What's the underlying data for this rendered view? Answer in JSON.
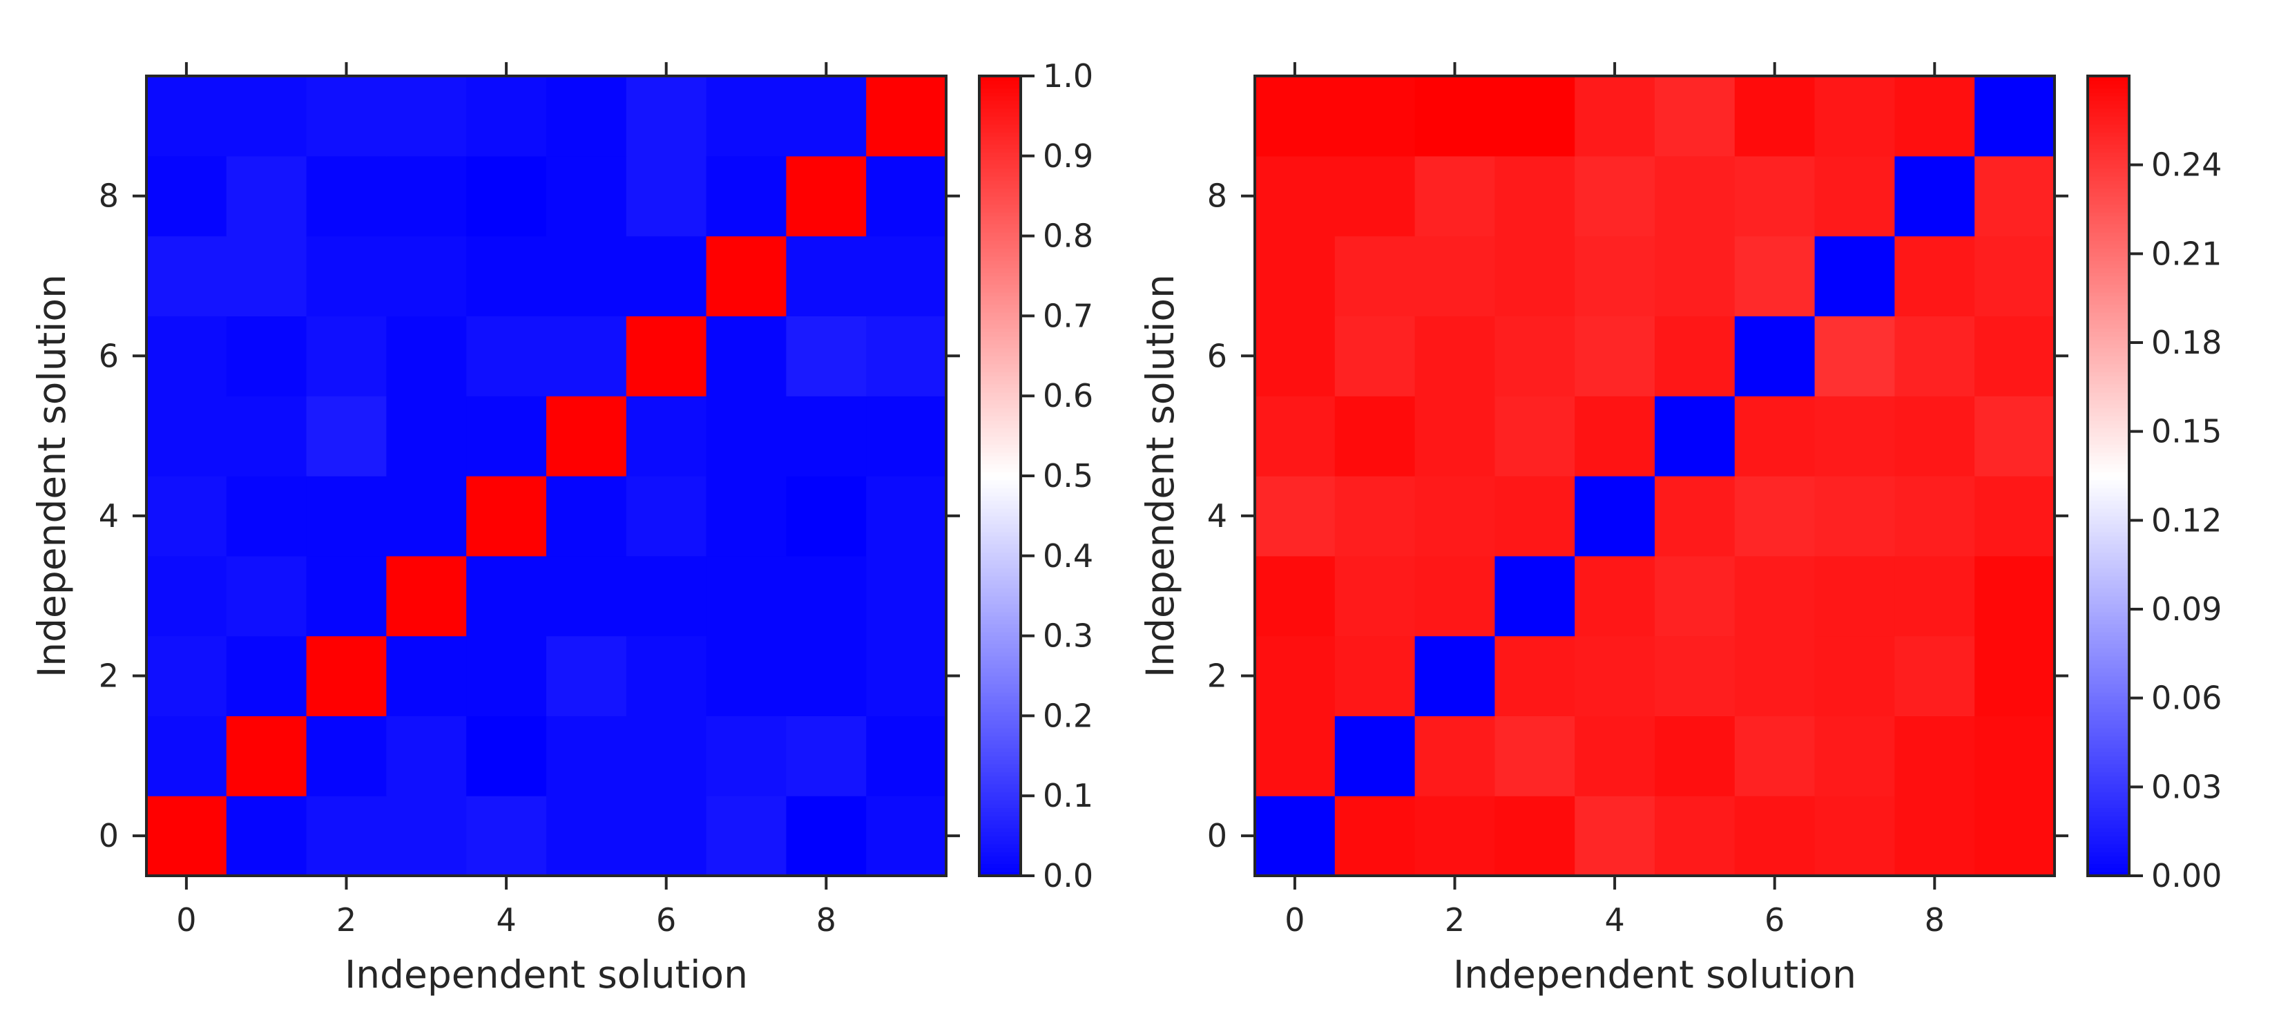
{
  "chart_data": [
    {
      "type": "heatmap",
      "title": "",
      "xlabel": "Independent solution",
      "ylabel": "Independent solution",
      "x_ticks": [
        0,
        2,
        4,
        6,
        8
      ],
      "y_ticks": [
        0,
        2,
        4,
        6,
        8
      ],
      "xlim": [
        -0.5,
        9.5
      ],
      "ylim": [
        -0.5,
        9.5
      ],
      "origin": "lower",
      "colormap": "bwr",
      "colorbar": {
        "vmin": 0.0,
        "vmax": 1.0,
        "ticks": [
          "0.0",
          "0.1",
          "0.2",
          "0.3",
          "0.4",
          "0.5",
          "0.6",
          "0.7",
          "0.8",
          "0.9",
          "1.0"
        ]
      },
      "matrix": [
        [
          1.0,
          0.01,
          0.03,
          0.03,
          0.04,
          0.02,
          0.02,
          0.04,
          0.0,
          0.02
        ],
        [
          0.02,
          1.0,
          0.01,
          0.03,
          0.0,
          0.02,
          0.02,
          0.03,
          0.04,
          0.01
        ],
        [
          0.03,
          0.01,
          1.0,
          0.01,
          0.01,
          0.04,
          0.02,
          0.01,
          0.01,
          0.02
        ],
        [
          0.02,
          0.03,
          0.01,
          1.0,
          0.01,
          0.01,
          0.01,
          0.01,
          0.01,
          0.02
        ],
        [
          0.03,
          0.01,
          0.01,
          0.01,
          1.0,
          0.01,
          0.03,
          0.01,
          0.0,
          0.02
        ],
        [
          0.02,
          0.02,
          0.05,
          0.01,
          0.01,
          1.0,
          0.02,
          0.01,
          0.01,
          0.01
        ],
        [
          0.02,
          0.01,
          0.03,
          0.01,
          0.03,
          0.03,
          1.0,
          0.01,
          0.05,
          0.04
        ],
        [
          0.04,
          0.04,
          0.02,
          0.02,
          0.01,
          0.01,
          0.01,
          1.0,
          0.02,
          0.02
        ],
        [
          0.01,
          0.04,
          0.01,
          0.01,
          0.0,
          0.01,
          0.04,
          0.01,
          1.0,
          0.01
        ],
        [
          0.02,
          0.02,
          0.03,
          0.03,
          0.02,
          0.01,
          0.04,
          0.02,
          0.02,
          1.0
        ]
      ]
    },
    {
      "type": "heatmap",
      "title": "",
      "xlabel": "Independent solution",
      "ylabel": "Independent solution",
      "x_ticks": [
        0,
        2,
        4,
        6,
        8
      ],
      "y_ticks": [
        0,
        2,
        4,
        6,
        8
      ],
      "xlim": [
        -0.5,
        9.5
      ],
      "ylim": [
        -0.5,
        9.5
      ],
      "origin": "lower",
      "colormap": "bwr",
      "colorbar": {
        "vmin": 0.0,
        "vmax": 0.27,
        "ticks": [
          "0.00",
          "0.03",
          "0.06",
          "0.09",
          "0.12",
          "0.15",
          "0.18",
          "0.21",
          "0.24"
        ]
      },
      "matrix": [
        [
          0.0,
          0.264,
          0.262,
          0.264,
          0.25,
          0.256,
          0.26,
          0.258,
          0.262,
          0.264
        ],
        [
          0.262,
          0.0,
          0.256,
          0.25,
          0.258,
          0.262,
          0.252,
          0.256,
          0.262,
          0.264
        ],
        [
          0.262,
          0.258,
          0.0,
          0.258,
          0.256,
          0.254,
          0.256,
          0.258,
          0.254,
          0.266
        ],
        [
          0.264,
          0.256,
          0.258,
          0.0,
          0.258,
          0.252,
          0.256,
          0.258,
          0.258,
          0.266
        ],
        [
          0.25,
          0.254,
          0.256,
          0.258,
          0.0,
          0.256,
          0.25,
          0.252,
          0.254,
          0.258
        ],
        [
          0.258,
          0.264,
          0.258,
          0.252,
          0.26,
          0.0,
          0.258,
          0.256,
          0.258,
          0.25
        ],
        [
          0.262,
          0.252,
          0.258,
          0.254,
          0.25,
          0.258,
          0.0,
          0.244,
          0.252,
          0.258
        ],
        [
          0.262,
          0.254,
          0.254,
          0.256,
          0.252,
          0.254,
          0.248,
          0.0,
          0.258,
          0.254
        ],
        [
          0.262,
          0.262,
          0.252,
          0.256,
          0.25,
          0.254,
          0.252,
          0.256,
          0.0,
          0.252
        ],
        [
          0.268,
          0.268,
          0.27,
          0.27,
          0.256,
          0.25,
          0.264,
          0.258,
          0.262,
          0.0
        ]
      ]
    }
  ]
}
